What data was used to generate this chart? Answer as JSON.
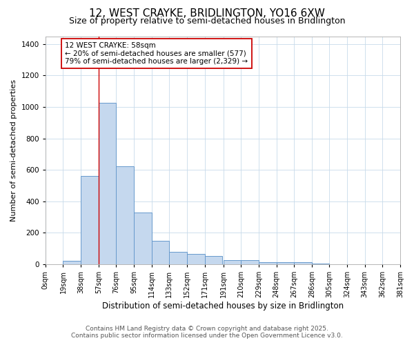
{
  "title": "12, WEST CRAYKE, BRIDLINGTON, YO16 6XW",
  "subtitle": "Size of property relative to semi-detached houses in Bridlington",
  "xlabel": "Distribution of semi-detached houses by size in Bridlington",
  "ylabel": "Number of semi-detached properties",
  "bar_values": [
    0,
    20,
    560,
    1025,
    625,
    330,
    148,
    80,
    65,
    52,
    28,
    28,
    15,
    13,
    13,
    6,
    2,
    0,
    0,
    0
  ],
  "bin_edges": [
    0,
    19,
    38,
    57,
    76,
    95,
    114,
    133,
    152,
    171,
    191,
    210,
    229,
    248,
    267,
    286,
    305,
    324,
    343,
    362,
    381
  ],
  "tick_labels": [
    "0sqm",
    "19sqm",
    "38sqm",
    "57sqm",
    "76sqm",
    "95sqm",
    "114sqm",
    "133sqm",
    "152sqm",
    "171sqm",
    "191sqm",
    "210sqm",
    "229sqm",
    "248sqm",
    "267sqm",
    "286sqm",
    "305sqm",
    "324sqm",
    "343sqm",
    "362sqm",
    "381sqm"
  ],
  "bar_color": "#c5d8ee",
  "bar_edge_color": "#6699cc",
  "bar_edge_width": 0.7,
  "red_line_x": 57,
  "red_line_color": "#cc0000",
  "annotation_title": "12 WEST CRAYKE: 58sqm",
  "annotation_line1": "← 20% of semi-detached houses are smaller (577)",
  "annotation_line2": "79% of semi-detached houses are larger (2,329) →",
  "annotation_box_color": "#cc0000",
  "ylim": [
    0,
    1450
  ],
  "xlim": [
    0,
    381
  ],
  "footnote1": "Contains HM Land Registry data © Crown copyright and database right 2025.",
  "footnote2": "Contains public sector information licensed under the Open Government Licence v3.0.",
  "background_color": "#ffffff",
  "grid_color": "#c8daea",
  "title_fontsize": 11,
  "subtitle_fontsize": 9,
  "xlabel_fontsize": 8.5,
  "ylabel_fontsize": 8,
  "tick_fontsize": 7,
  "annotation_fontsize": 7.5,
  "footnote_fontsize": 6.5
}
